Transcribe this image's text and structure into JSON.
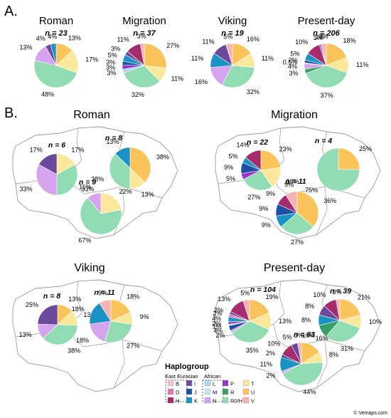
{
  "panel_a_label": "A.",
  "panel_b_label": "B.",
  "credit": "© Vemaps.com",
  "colors": {
    "B": "#f6c4cc",
    "D": "#e07ab4",
    "H": "#a62c6b",
    "I": "#6b4a9e",
    "J": "#1f4fa3",
    "K": "#1a92c4",
    "L": "#a9d9ee",
    "M": "#c8e6f0",
    "N": "#d6a3ef",
    "P": "#9a35c9",
    "R": "#3a9f67",
    "R0/H": "#92dcb4",
    "T": "#fbe89a",
    "U": "#fbc45a",
    "V": "#f6b3b3"
  },
  "legend": {
    "title": "Haplogroup",
    "group_east": "East Eurasian",
    "group_african": "African",
    "items": [
      {
        "key": "B",
        "label": "B"
      },
      {
        "key": "I",
        "label": "I"
      },
      {
        "key": "L",
        "label": "L"
      },
      {
        "key": "P",
        "label": "P"
      },
      {
        "key": "T",
        "label": "T"
      },
      {
        "key": "D",
        "label": "D"
      },
      {
        "key": "J",
        "label": "J"
      },
      {
        "key": "M",
        "label": "M"
      },
      {
        "key": "R",
        "label": "R"
      },
      {
        "key": "U",
        "label": "U"
      },
      {
        "key": "H",
        "label": "H"
      },
      {
        "key": "K",
        "label": "K"
      },
      {
        "key": "N",
        "label": "N"
      },
      {
        "key": "R0/H",
        "label": "R0/H"
      },
      {
        "key": "V",
        "label": "V"
      }
    ]
  },
  "chart_data": [
    {
      "id": "a-roman",
      "type": "pie",
      "title": "Roman",
      "n_label": "n = 23",
      "slices": [
        {
          "key": "U",
          "value": 13,
          "label": "13%"
        },
        {
          "key": "T",
          "value": 17,
          "label": "17%"
        },
        {
          "key": "R0/H",
          "value": 48,
          "label": "48%"
        },
        {
          "key": "N",
          "value": 13,
          "label": "13%"
        },
        {
          "key": "I",
          "value": 4,
          "label": "4%"
        },
        {
          "key": "K",
          "value": 4,
          "label": "4%"
        }
      ]
    },
    {
      "id": "a-migration",
      "type": "pie",
      "title": "Migration",
      "n_label": "n = 37",
      "slices": [
        {
          "key": "U",
          "value": 27,
          "label": "27%"
        },
        {
          "key": "T",
          "value": 11,
          "label": "11%"
        },
        {
          "key": "R0/H",
          "value": 32,
          "label": "32%"
        },
        {
          "key": "L",
          "value": 3,
          "label": "3%"
        },
        {
          "key": "P",
          "value": 3,
          "label": "3%"
        },
        {
          "key": "J",
          "value": 3,
          "label": "3%"
        },
        {
          "key": "K",
          "value": 5,
          "label": "5%"
        },
        {
          "key": "I",
          "value": 3,
          "label": "3%"
        },
        {
          "key": "H",
          "value": 11,
          "label": "11%"
        },
        {
          "key": "V",
          "value": 3,
          "label": "3%"
        }
      ]
    },
    {
      "id": "a-viking",
      "type": "pie",
      "title": "Viking",
      "n_label": "n = 19",
      "slices": [
        {
          "key": "U",
          "value": 16,
          "label": "16%"
        },
        {
          "key": "T",
          "value": 11,
          "label": "11%"
        },
        {
          "key": "R0/H",
          "value": 32,
          "label": "32%"
        },
        {
          "key": "N",
          "value": 16,
          "label": "16%"
        },
        {
          "key": "K",
          "value": 11,
          "label": "11%"
        },
        {
          "key": "I",
          "value": 11,
          "label": "11%"
        },
        {
          "key": "V",
          "value": 5,
          "label": "5%"
        }
      ]
    },
    {
      "id": "a-present",
      "type": "pie",
      "title": "Present-day",
      "n_label": "n = 206",
      "slices": [
        {
          "key": "U",
          "value": 18,
          "label": "18%"
        },
        {
          "key": "T",
          "value": 11,
          "label": "11%"
        },
        {
          "key": "R0/H",
          "value": 37,
          "label": "37%"
        },
        {
          "key": "R",
          "value": 3,
          "label": "3%"
        },
        {
          "key": "N",
          "value": 4,
          "label": "4%"
        },
        {
          "key": "L",
          "value": 0.5,
          "label": "0.5%"
        },
        {
          "key": "J",
          "value": 2,
          "label": "2%"
        },
        {
          "key": "K",
          "value": 5,
          "label": "5%"
        },
        {
          "key": "H",
          "value": 10,
          "label": "10%"
        },
        {
          "key": "I",
          "value": 1,
          "label": "1%"
        },
        {
          "key": "D",
          "value": 1,
          "label": "1%"
        },
        {
          "key": "V",
          "value": 3,
          "label": "3%"
        }
      ]
    },
    {
      "id": "b-roman-1",
      "type": "pie",
      "region": "Roman",
      "n_label": "n = 6",
      "slices": [
        {
          "key": "T",
          "value": 17,
          "label": "17%"
        },
        {
          "key": "R0/H",
          "value": 33,
          "label": "33%"
        },
        {
          "key": "N",
          "value": 33,
          "label": "33%"
        },
        {
          "key": "I",
          "value": 17,
          "label": "17%"
        }
      ]
    },
    {
      "id": "b-roman-2",
      "type": "pie",
      "region": "Roman",
      "n_label": "n = 8",
      "slices": [
        {
          "key": "U",
          "value": 38,
          "label": "38%"
        },
        {
          "key": "T",
          "value": 13,
          "label": "13%"
        },
        {
          "key": "R0/H",
          "value": 38,
          "label": "38%"
        },
        {
          "key": "K",
          "value": 13,
          "label": "13%"
        }
      ]
    },
    {
      "id": "b-roman-3",
      "type": "pie",
      "region": "Roman",
      "n_label": "n = 9",
      "slices": [
        {
          "key": "T",
          "value": 22,
          "label": "22%"
        },
        {
          "key": "R0/H",
          "value": 67,
          "label": "67%"
        },
        {
          "key": "N",
          "value": 11,
          "label": "11%"
        }
      ]
    },
    {
      "id": "b-migration-1",
      "type": "pie",
      "region": "Migration",
      "n_label": "n = 22",
      "slices": [
        {
          "key": "U",
          "value": 23,
          "label": "23%"
        },
        {
          "key": "T",
          "value": 18,
          "label": "18%"
        },
        {
          "key": "R0/H",
          "value": 27,
          "label": "27%"
        },
        {
          "key": "P",
          "value": 5,
          "label": "5%"
        },
        {
          "key": "J",
          "value": 9,
          "label": "9%"
        },
        {
          "key": "K",
          "value": 5,
          "label": "5%"
        },
        {
          "key": "H",
          "value": 14,
          "label": "14%"
        }
      ]
    },
    {
      "id": "b-migration-2",
      "type": "pie",
      "region": "Migration",
      "n_label": "n = 4",
      "slices": [
        {
          "key": "U",
          "value": 25,
          "label": "25%"
        },
        {
          "key": "R0/H",
          "value": 75,
          "label": "75%"
        }
      ]
    },
    {
      "id": "b-migration-3",
      "type": "pie",
      "region": "Migration",
      "n_label": "n = 11",
      "slices": [
        {
          "key": "U",
          "value": 36,
          "label": "36%"
        },
        {
          "key": "R0/H",
          "value": 27,
          "label": "27%"
        },
        {
          "key": "K",
          "value": 9,
          "label": "9%"
        },
        {
          "key": "J",
          "value": 9,
          "label": "9%"
        },
        {
          "key": "H",
          "value": 9,
          "label": "9%"
        },
        {
          "key": "V",
          "value": 9,
          "label": "9%"
        }
      ]
    },
    {
      "id": "b-viking-1",
      "type": "pie",
      "region": "Viking",
      "n_label": "n = 8",
      "slices": [
        {
          "key": "U",
          "value": 13,
          "label": "13%"
        },
        {
          "key": "T",
          "value": 13,
          "label": "13%"
        },
        {
          "key": "R0/H",
          "value": 38,
          "label": "38%"
        },
        {
          "key": "N",
          "value": 13,
          "label": "13%"
        },
        {
          "key": "I",
          "value": 25,
          "label": "25%"
        }
      ]
    },
    {
      "id": "b-viking-2",
      "type": "pie",
      "region": "Viking",
      "n_label": "n = 11",
      "slices": [
        {
          "key": "U",
          "value": 18,
          "label": "18%"
        },
        {
          "key": "T",
          "value": 9,
          "label": "9%"
        },
        {
          "key": "R0/H",
          "value": 27,
          "label": "27%"
        },
        {
          "key": "N",
          "value": 18,
          "label": "18%"
        },
        {
          "key": "K",
          "value": 18,
          "label": "18%"
        },
        {
          "key": "V",
          "value": 9,
          "label": "9%"
        }
      ]
    },
    {
      "id": "b-present-1",
      "type": "pie",
      "region": "Present-day",
      "n_label": "n = 104",
      "slices": [
        {
          "key": "U",
          "value": 19,
          "label": "19%"
        },
        {
          "key": "T",
          "value": 13,
          "label": "13%"
        },
        {
          "key": "R0/H",
          "value": 35,
          "label": "35%"
        },
        {
          "key": "N",
          "value": 2,
          "label": "2%"
        },
        {
          "key": "J",
          "value": 4,
          "label": "4%"
        },
        {
          "key": "L",
          "value": 1,
          "label": "1%"
        },
        {
          "key": "P",
          "value": 2,
          "label": "2%"
        },
        {
          "key": "K",
          "value": 4,
          "label": "4%"
        },
        {
          "key": "D",
          "value": 2,
          "label": "2%"
        },
        {
          "key": "I",
          "value": 2,
          "label": "2%"
        },
        {
          "key": "H",
          "value": 13,
          "label": "13%"
        },
        {
          "key": "V",
          "value": 5,
          "label": "5%"
        }
      ]
    },
    {
      "id": "b-present-2",
      "type": "pie",
      "region": "Present-day",
      "n_label": "n = 39",
      "slices": [
        {
          "key": "U",
          "value": 21,
          "label": "21%"
        },
        {
          "key": "T",
          "value": 10,
          "label": "10%"
        },
        {
          "key": "R0/H",
          "value": 31,
          "label": "31%"
        },
        {
          "key": "R",
          "value": 10,
          "label": "10%"
        },
        {
          "key": "K",
          "value": 8,
          "label": "8%"
        },
        {
          "key": "I",
          "value": 8,
          "label": "8%"
        },
        {
          "key": "H",
          "value": 10,
          "label": "10%"
        },
        {
          "key": "V",
          "value": 3,
          "label": "3%"
        }
      ]
    },
    {
      "id": "b-present-3",
      "type": "pie",
      "region": "Present-day",
      "n_label": "n = 63",
      "slices": [
        {
          "key": "U",
          "value": 16,
          "label": "16%"
        },
        {
          "key": "T",
          "value": 8,
          "label": "8%"
        },
        {
          "key": "R0/H",
          "value": 44,
          "label": "44%"
        },
        {
          "key": "N",
          "value": 2,
          "label": "2%"
        },
        {
          "key": "K",
          "value": 11,
          "label": "11%"
        },
        {
          "key": "J",
          "value": 2,
          "label": "2%"
        },
        {
          "key": "H",
          "value": 10,
          "label": "10%"
        },
        {
          "key": "I",
          "value": 5,
          "label": "5%"
        },
        {
          "key": "V",
          "value": 3,
          "label": "3%"
        }
      ]
    }
  ],
  "map_titles": {
    "roman": "Roman",
    "migration": "Migration",
    "viking": "Viking",
    "present": "Present-day"
  }
}
